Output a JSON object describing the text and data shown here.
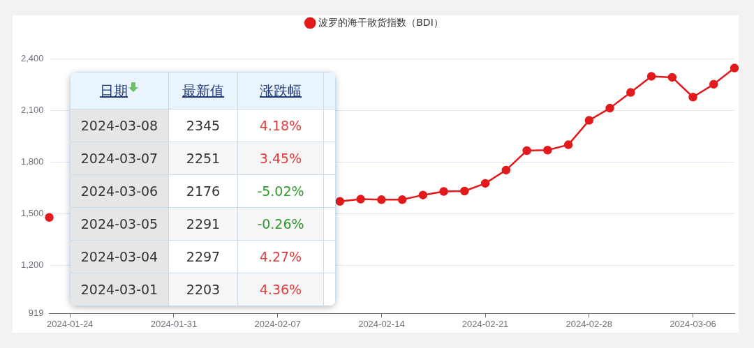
{
  "chart_data": {
    "type": "line",
    "categories": [
      null,
      "2024-01-24",
      null,
      null,
      null,
      null,
      "2024-01-31",
      null,
      null,
      null,
      null,
      "2024-02-07",
      null,
      null,
      null,
      null,
      "2024-02-14",
      null,
      null,
      null,
      null,
      "2024-02-21",
      null,
      null,
      null,
      null,
      "2024-02-28",
      null,
      null,
      null,
      null,
      "2024-03-06",
      null,
      null
    ],
    "series": [
      {
        "name": "波罗的海干散货指数（BDI）",
        "color": "#e31a1c",
        "values": [
          1477,
          null,
          null,
          null,
          null,
          null,
          null,
          null,
          null,
          null,
          null,
          null,
          null,
          null,
          1570,
          1583,
          1580,
          1580,
          1607,
          1628,
          1630,
          1675,
          1752,
          1865,
          1868,
          1899,
          2041,
          2112,
          2203,
          2297,
          2291,
          2176,
          2251,
          2345
        ]
      }
    ],
    "ylim": [
      919,
      2400
    ],
    "yticks": [
      919,
      {
        "value": 1200,
        "label": "1,200"
      },
      {
        "value": 1500,
        "label": "1,500"
      },
      {
        "value": 1800,
        "label": "1,800"
      },
      {
        "value": 2100,
        "label": "2,100"
      },
      {
        "value": 2400,
        "label": "2,400"
      }
    ],
    "grid": "y",
    "legend": "top",
    "marker": "circle",
    "line_style": "solid",
    "annotations": [
      "日期",
      "最新值",
      "涨跌幅",
      "2024-03-08",
      "2345",
      "4.18%",
      "2024-03-07",
      "2251",
      "3.45%",
      "2024-03-06",
      "2176",
      "-5.02%",
      "2024-03-05",
      "2291",
      "-0.26%",
      "2024-03-04",
      "2297",
      "4.27%",
      "2024-03-01",
      "2203",
      "4.36%"
    ]
  }
}
